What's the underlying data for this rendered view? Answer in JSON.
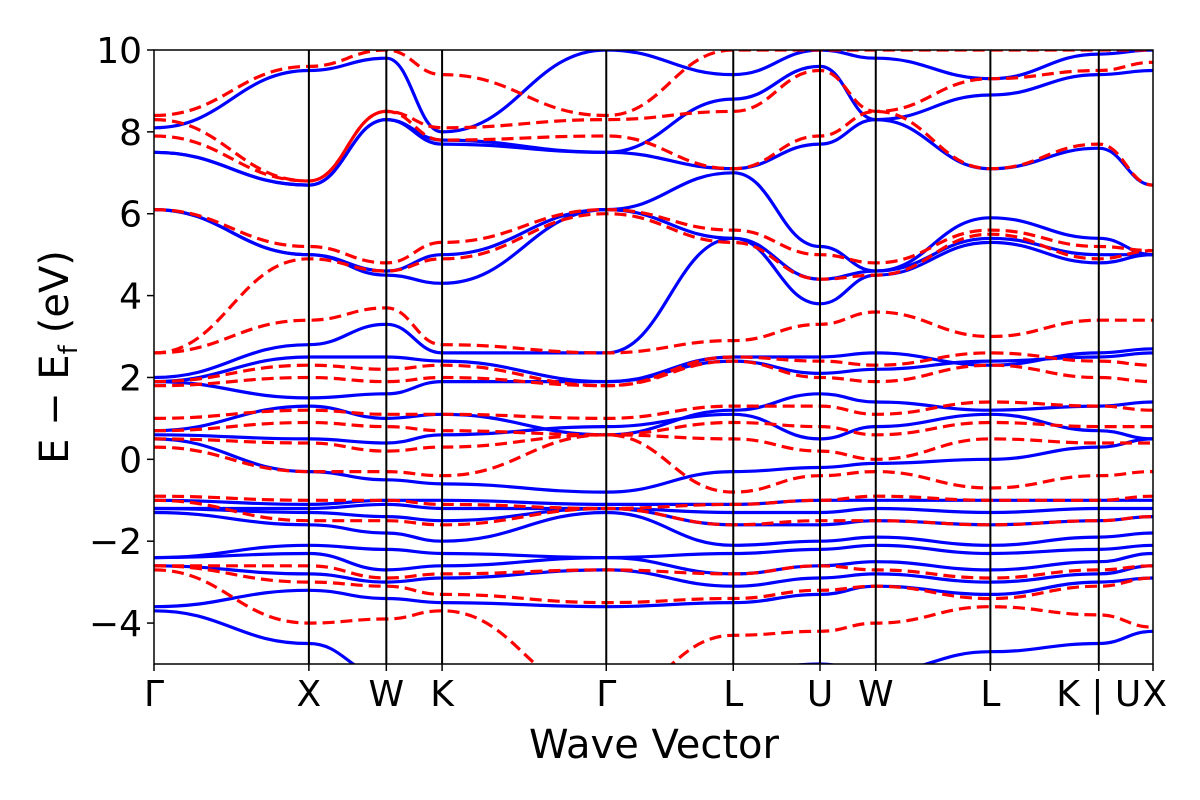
{
  "chart_data": {
    "type": "line",
    "xlabel": "Wave Vector",
    "ylabel": "E − E",
    "ylabel_sub": "f",
    "ylabel_unit": "(eV)",
    "ylim": [
      -5,
      10
    ],
    "yticks": [
      {
        "value": -4,
        "label": "−4"
      },
      {
        "value": -2,
        "label": "−2"
      },
      {
        "value": 0,
        "label": "0"
      },
      {
        "value": 2,
        "label": "2"
      },
      {
        "value": 4,
        "label": "4"
      },
      {
        "value": 6,
        "label": "6"
      },
      {
        "value": 8,
        "label": "8"
      },
      {
        "value": 10,
        "label": "10"
      }
    ],
    "xlim": [
      0,
      6.45
    ],
    "kpoints": [
      {
        "pos": 0.0,
        "label": "Γ"
      },
      {
        "pos": 1.0,
        "label": "X"
      },
      {
        "pos": 1.5,
        "label": "W"
      },
      {
        "pos": 1.86,
        "label": "K"
      },
      {
        "pos": 2.92,
        "label": "Γ"
      },
      {
        "pos": 3.74,
        "label": "L"
      },
      {
        "pos": 4.3,
        "label": "U"
      },
      {
        "pos": 4.66,
        "label": "W"
      },
      {
        "pos": 5.4,
        "label": "L"
      },
      {
        "pos": 6.1,
        "label": "K | U"
      },
      {
        "pos": 6.45,
        "label": "X"
      }
    ],
    "styles": {
      "solid": {
        "color": "#0000ff",
        "dash": false
      },
      "dashed": {
        "color": "#ff0000",
        "dash": true
      }
    },
    "series": [
      {
        "style": "solid",
        "values": [
          -3.7,
          -4.5,
          -5.3,
          -5.6,
          -5.8,
          -5.2,
          -5.0,
          -5.2,
          -4.7,
          -4.5,
          -4.2
        ]
      },
      {
        "style": "solid",
        "values": [
          -3.6,
          -3.2,
          -3.4,
          -3.5,
          -3.6,
          -3.5,
          -3.3,
          -3.1,
          -3.3,
          -3.0,
          -2.9
        ]
      },
      {
        "style": "solid",
        "values": [
          -2.6,
          -2.8,
          -3.0,
          -2.9,
          -2.7,
          -3.1,
          -2.9,
          -2.8,
          -3.0,
          -2.8,
          -2.6
        ]
      },
      {
        "style": "solid",
        "values": [
          -2.4,
          -2.3,
          -2.7,
          -2.6,
          -2.4,
          -2.8,
          -2.6,
          -2.5,
          -2.7,
          -2.5,
          -2.3
        ]
      },
      {
        "style": "solid",
        "values": [
          -2.4,
          -2.1,
          -2.2,
          -2.3,
          -2.4,
          -2.3,
          -2.2,
          -2.1,
          -2.3,
          -2.2,
          -2.1
        ]
      },
      {
        "style": "solid",
        "values": [
          -1.3,
          -1.6,
          -1.8,
          -2.0,
          -1.3,
          -2.1,
          -2.0,
          -1.9,
          -2.1,
          -1.9,
          -1.8
        ]
      },
      {
        "style": "solid",
        "values": [
          -1.2,
          -1.3,
          -1.4,
          -1.5,
          -1.2,
          -1.6,
          -1.6,
          -1.5,
          -1.6,
          -1.5,
          -1.4
        ]
      },
      {
        "style": "solid",
        "values": [
          -1.2,
          -1.2,
          -1.1,
          -1.2,
          -1.2,
          -1.3,
          -1.3,
          -1.2,
          -1.3,
          -1.2,
          -1.2
        ]
      },
      {
        "style": "solid",
        "values": [
          -1.0,
          -1.1,
          -1.0,
          -1.0,
          -1.1,
          -1.1,
          -1.0,
          -1.0,
          -1.0,
          -1.0,
          -1.0
        ]
      },
      {
        "style": "solid",
        "values": [
          0.5,
          -0.3,
          -0.5,
          -0.6,
          -0.8,
          -0.3,
          -0.2,
          -0.1,
          0.0,
          0.3,
          0.5
        ]
      },
      {
        "style": "solid",
        "values": [
          0.6,
          0.5,
          0.4,
          0.6,
          0.8,
          1.1,
          0.5,
          0.8,
          1.1,
          0.7,
          0.5
        ]
      },
      {
        "style": "solid",
        "values": [
          0.7,
          1.3,
          1.0,
          1.1,
          0.6,
          1.2,
          1.6,
          1.4,
          1.2,
          1.3,
          1.4
        ]
      },
      {
        "style": "solid",
        "values": [
          1.9,
          1.5,
          1.6,
          1.9,
          1.9,
          2.4,
          2.1,
          2.2,
          2.4,
          2.5,
          2.6
        ]
      },
      {
        "style": "solid",
        "values": [
          1.9,
          2.5,
          2.5,
          2.4,
          1.9,
          2.5,
          2.5,
          2.6,
          2.3,
          2.6,
          2.7
        ]
      },
      {
        "style": "solid",
        "values": [
          2.0,
          2.8,
          3.3,
          2.6,
          2.6,
          5.4,
          3.8,
          4.5,
          5.3,
          4.8,
          5.0
        ]
      },
      {
        "style": "solid",
        "values": [
          6.1,
          5.0,
          4.5,
          4.3,
          6.1,
          5.4,
          4.4,
          4.6,
          5.4,
          5.0,
          5.0
        ]
      },
      {
        "style": "solid",
        "values": [
          6.1,
          5.0,
          4.6,
          5.0,
          6.1,
          7.0,
          5.2,
          4.6,
          5.9,
          5.4,
          5.0
        ]
      },
      {
        "style": "solid",
        "values": [
          7.5,
          6.7,
          8.3,
          7.7,
          7.5,
          7.1,
          7.7,
          8.3,
          7.1,
          7.6,
          6.7
        ]
      },
      {
        "style": "solid",
        "values": [
          7.5,
          6.7,
          8.3,
          7.8,
          7.5,
          8.8,
          9.6,
          8.3,
          8.9,
          9.4,
          9.5
        ]
      },
      {
        "style": "solid",
        "values": [
          8.1,
          9.5,
          9.8,
          8.0,
          10.0,
          9.4,
          10.0,
          9.8,
          9.3,
          9.9,
          10.0
        ]
      },
      {
        "style": "dashed",
        "values": [
          -2.7,
          -4.0,
          -3.9,
          -3.7,
          -5.8,
          -4.3,
          -4.2,
          -4.0,
          -3.6,
          -3.8,
          -4.1
        ]
      },
      {
        "style": "dashed",
        "values": [
          -2.6,
          -3.0,
          -3.1,
          -3.3,
          -3.5,
          -3.4,
          -3.2,
          -3.1,
          -3.4,
          -3.1,
          -2.9
        ]
      },
      {
        "style": "dashed",
        "values": [
          -2.6,
          -2.6,
          -2.9,
          -2.8,
          -2.7,
          -2.8,
          -2.6,
          -2.7,
          -2.9,
          -2.7,
          -2.6
        ]
      },
      {
        "style": "dashed",
        "values": [
          -1.0,
          -1.5,
          -1.5,
          -1.6,
          -1.2,
          -1.6,
          -1.5,
          -1.5,
          -1.6,
          -1.5,
          -1.4
        ]
      },
      {
        "style": "dashed",
        "values": [
          -0.9,
          -1.0,
          -1.0,
          -1.1,
          -1.2,
          -1.1,
          -1.0,
          -0.9,
          -1.0,
          -1.0,
          -0.9
        ]
      },
      {
        "style": "dashed",
        "values": [
          0.3,
          -0.3,
          -0.3,
          -0.4,
          0.6,
          -0.8,
          -0.4,
          -0.3,
          -0.7,
          -0.4,
          -0.3
        ]
      },
      {
        "style": "dashed",
        "values": [
          0.5,
          0.4,
          0.2,
          0.3,
          0.6,
          0.5,
          0.2,
          0.0,
          0.5,
          0.4,
          0.4
        ]
      },
      {
        "style": "dashed",
        "values": [
          0.7,
          0.9,
          0.8,
          0.7,
          0.6,
          0.9,
          0.8,
          0.6,
          0.9,
          0.8,
          0.8
        ]
      },
      {
        "style": "dashed",
        "values": [
          1.0,
          1.2,
          1.1,
          1.1,
          1.0,
          1.3,
          1.3,
          1.1,
          1.4,
          1.3,
          1.2
        ]
      },
      {
        "style": "dashed",
        "values": [
          1.8,
          2.0,
          1.9,
          2.0,
          1.8,
          2.4,
          2.0,
          1.9,
          2.3,
          2.0,
          1.9
        ]
      },
      {
        "style": "dashed",
        "values": [
          1.9,
          2.3,
          2.2,
          2.3,
          1.8,
          2.5,
          2.4,
          2.3,
          2.6,
          2.4,
          2.3
        ]
      },
      {
        "style": "dashed",
        "values": [
          2.6,
          3.4,
          3.7,
          2.8,
          2.6,
          2.9,
          3.3,
          3.6,
          3.0,
          3.4,
          3.4
        ]
      },
      {
        "style": "dashed",
        "values": [
          2.6,
          4.9,
          4.6,
          4.9,
          6.0,
          5.3,
          4.4,
          4.5,
          5.5,
          4.9,
          5.1
        ]
      },
      {
        "style": "dashed",
        "values": [
          6.1,
          5.2,
          4.8,
          5.3,
          6.1,
          5.6,
          5.0,
          4.8,
          5.6,
          5.2,
          5.1
        ]
      },
      {
        "style": "dashed",
        "values": [
          7.9,
          6.8,
          8.5,
          7.8,
          7.9,
          7.1,
          7.9,
          8.5,
          7.1,
          7.7,
          6.7
        ]
      },
      {
        "style": "dashed",
        "values": [
          8.3,
          6.8,
          8.5,
          8.1,
          8.3,
          8.5,
          9.5,
          8.5,
          9.3,
          9.5,
          9.7
        ]
      },
      {
        "style": "dashed",
        "values": [
          8.4,
          9.6,
          10.0,
          9.4,
          8.4,
          10.0,
          10.0,
          10.0,
          10.0,
          10.0,
          10.0
        ]
      }
    ]
  }
}
